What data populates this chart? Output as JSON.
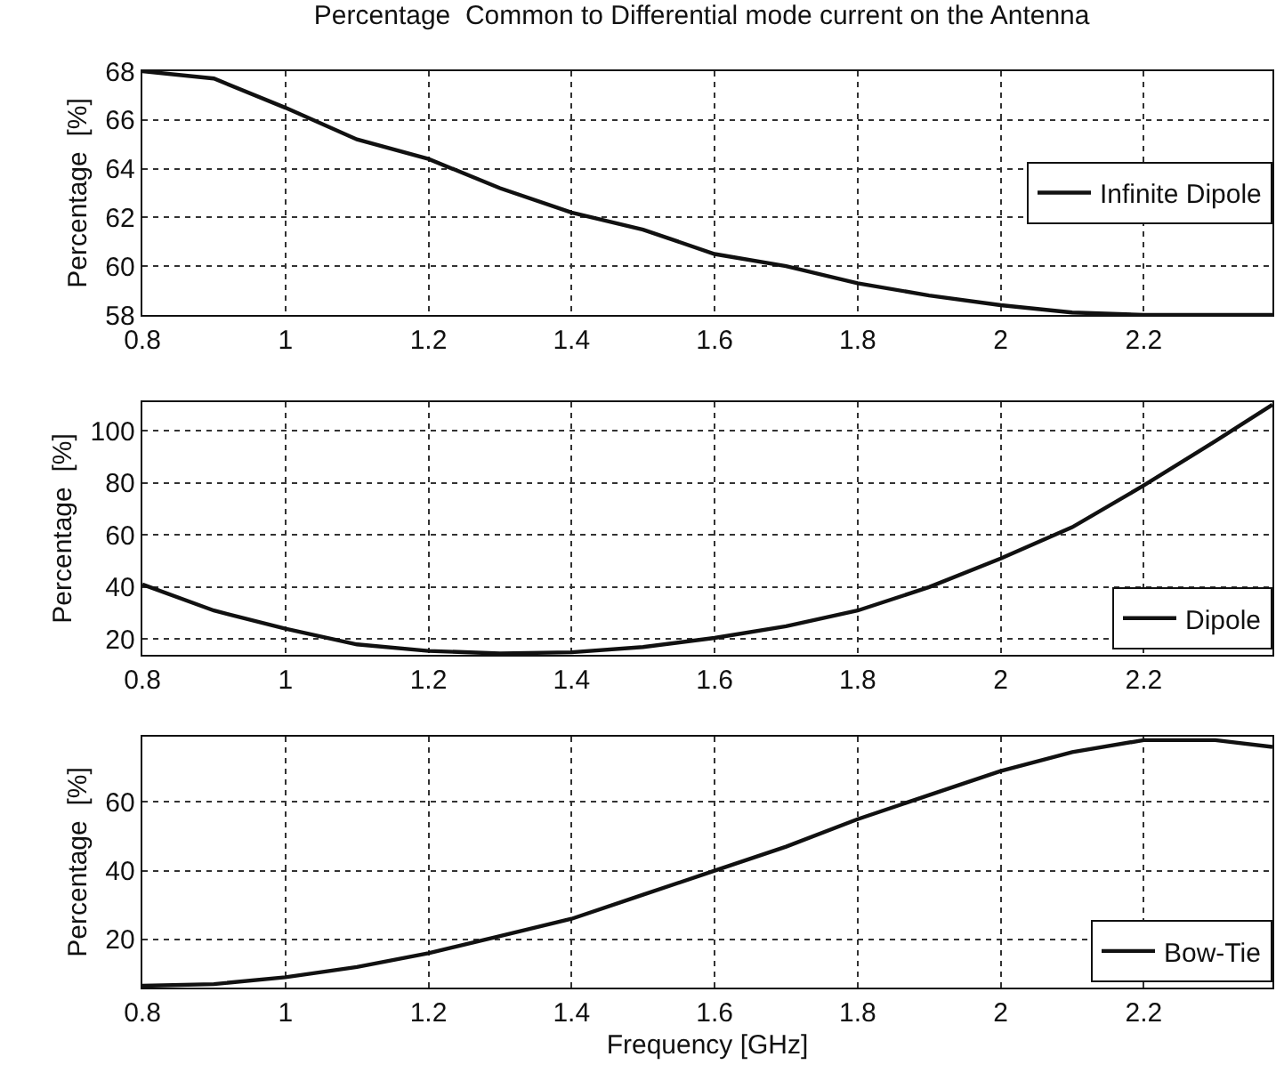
{
  "chart_data": [
    {
      "type": "line",
      "title": "Percentage  Common to Differential mode current on the Antenna",
      "ylabel": "Percentage  [%]",
      "x": [
        0.8,
        0.9,
        1.0,
        1.1,
        1.2,
        1.3,
        1.4,
        1.5,
        1.6,
        1.7,
        1.8,
        1.9,
        2.0,
        2.1,
        2.2,
        2.3,
        2.38
      ],
      "series": [
        {
          "name": "Infinite Dipole",
          "color": "#111111",
          "values": [
            68,
            67.7,
            66.5,
            65.2,
            64.4,
            63.2,
            62.2,
            61.5,
            60.5,
            60.0,
            59.3,
            58.8,
            58.4,
            58.1,
            58,
            58,
            58
          ]
        }
      ],
      "xlim": [
        0.8,
        2.38
      ],
      "xticks": [
        0.8,
        1,
        1.2,
        1.4,
        1.6,
        1.8,
        2,
        2.2
      ],
      "ylim": [
        58,
        68
      ],
      "yticks": [
        58,
        60,
        62,
        64,
        66,
        68
      ],
      "grid": true,
      "legend": "right",
      "line_style": "solid"
    },
    {
      "type": "line",
      "ylabel": "Percentage  [%]",
      "x": [
        0.8,
        0.9,
        1.0,
        1.1,
        1.2,
        1.3,
        1.4,
        1.5,
        1.6,
        1.7,
        1.8,
        1.9,
        2.0,
        2.1,
        2.2,
        2.3,
        2.38
      ],
      "series": [
        {
          "name": "Dipole",
          "color": "#111111",
          "values": [
            41,
            31,
            24,
            18,
            15.5,
            14.5,
            15,
            17,
            20.5,
            25,
            31,
            40,
            51,
            63,
            79,
            96,
            110
          ]
        }
      ],
      "xlim": [
        0.8,
        2.38
      ],
      "xticks": [
        0.8,
        1,
        1.2,
        1.4,
        1.6,
        1.8,
        2,
        2.2
      ],
      "ylim": [
        14,
        111
      ],
      "yticks": [
        20,
        40,
        60,
        80,
        100
      ],
      "grid": true,
      "legend": "bottom right",
      "line_style": "solid"
    },
    {
      "type": "line",
      "xlabel": "Frequency [GHz]",
      "ylabel": "Percentage  [%]",
      "x": [
        0.8,
        0.9,
        1.0,
        1.1,
        1.2,
        1.3,
        1.4,
        1.5,
        1.6,
        1.7,
        1.8,
        1.9,
        2.0,
        2.1,
        2.2,
        2.3,
        2.38
      ],
      "series": [
        {
          "name": "Bow-Tie",
          "color": "#111111",
          "values": [
            6.5,
            7,
            9,
            12,
            16,
            21,
            26,
            33,
            40,
            47,
            55,
            62,
            69,
            74.5,
            78,
            78,
            76
          ]
        }
      ],
      "xlim": [
        0.8,
        2.38
      ],
      "xticks": [
        0.8,
        1,
        1.2,
        1.4,
        1.6,
        1.8,
        2,
        2.2
      ],
      "ylim": [
        6,
        79
      ],
      "yticks": [
        20,
        40,
        60
      ],
      "grid": true,
      "legend": "bottom right",
      "line_style": "solid"
    }
  ]
}
